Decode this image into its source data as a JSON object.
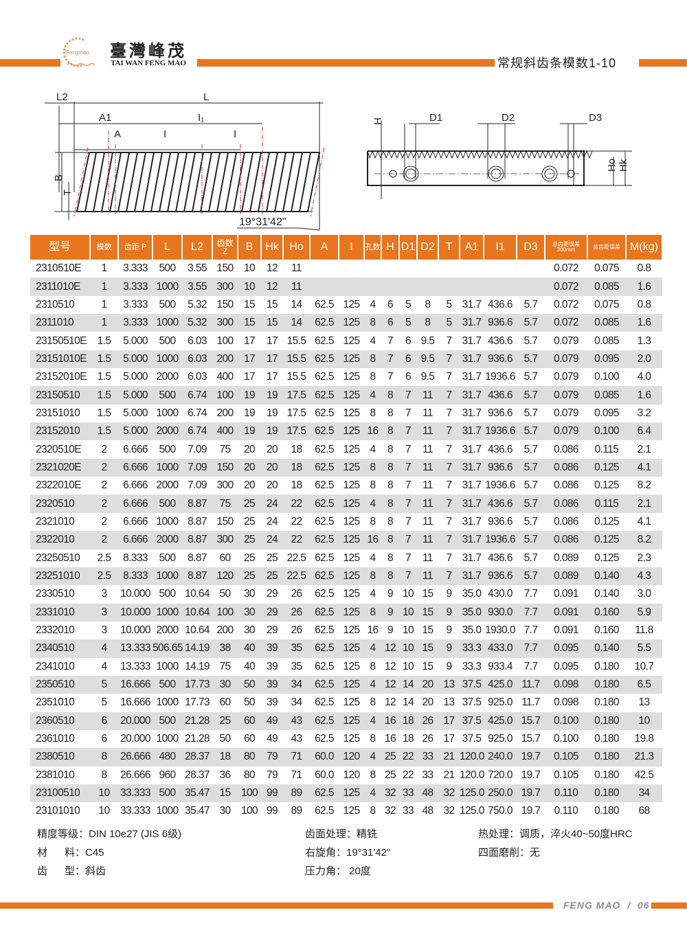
{
  "header": {
    "logo_mark_text": "Fengmao",
    "company_cn": "臺灣峰茂",
    "company_en": "TAI WAN FENG MAO",
    "page_title": "常规斜齿条模数1-10",
    "accent_color": "#e8761e"
  },
  "diagram": {
    "left_labels": {
      "L2": "L2",
      "L": "L",
      "A1": "A1",
      "I1": "I₁",
      "A": "A",
      "I_a": "I",
      "I_b": "I",
      "B": "B",
      "T": "T",
      "angle": "19°31'42\""
    },
    "right_labels": {
      "H": "H",
      "D1": "D1",
      "D2": "D2",
      "D3": "D3",
      "Ho": "Ho",
      "Hk": "Hk"
    }
  },
  "table": {
    "headers": [
      "型号",
      "模数",
      "齿距 P",
      "L",
      "L2",
      "齿数 Z",
      "B",
      "Hk",
      "Ho",
      "A",
      "I",
      "孔数",
      "H",
      "D1",
      "D2",
      "T",
      "A1",
      "I1",
      "D3",
      "总齿距误差 300mm",
      "总齿距误差",
      "M(kg)"
    ],
    "rows": [
      [
        "2310510E",
        "1",
        "3.333",
        "500",
        "3.55",
        "150",
        "10",
        "12",
        "11",
        "",
        "",
        "",
        "",
        "",
        "",
        "",
        "",
        "",
        "",
        "0.072",
        "0.075",
        "0.8"
      ],
      [
        "2311010E",
        "1",
        "3.333",
        "1000",
        "3.55",
        "300",
        "10",
        "12",
        "11",
        "",
        "",
        "",
        "",
        "",
        "",
        "",
        "",
        "",
        "",
        "0.072",
        "0.085",
        "1.6"
      ],
      [
        "2310510",
        "1",
        "3.333",
        "500",
        "5.32",
        "150",
        "15",
        "15",
        "14",
        "62.5",
        "125",
        "4",
        "6",
        "5",
        "8",
        "5",
        "31.7",
        "436.6",
        "5.7",
        "0.072",
        "0.075",
        "0.8"
      ],
      [
        "2311010",
        "1",
        "3.333",
        "1000",
        "5.32",
        "300",
        "15",
        "15",
        "14",
        "62.5",
        "125",
        "8",
        "6",
        "5",
        "8",
        "5",
        "31.7",
        "936.6",
        "5.7",
        "0.072",
        "0.085",
        "1.6"
      ],
      [
        "23150510E",
        "1.5",
        "5.000",
        "500",
        "6.03",
        "100",
        "17",
        "17",
        "15.5",
        "62.5",
        "125",
        "4",
        "7",
        "6",
        "9.5",
        "7",
        "31.7",
        "436.6",
        "5.7",
        "0.079",
        "0.085",
        "1.3"
      ],
      [
        "23151010E",
        "1.5",
        "5.000",
        "1000",
        "6.03",
        "200",
        "17",
        "17",
        "15.5",
        "62.5",
        "125",
        "8",
        "7",
        "6",
        "9.5",
        "7",
        "31.7",
        "936.6",
        "5.7",
        "0.079",
        "0.095",
        "2.0"
      ],
      [
        "23152010E",
        "1.5",
        "5.000",
        "2000",
        "6.03",
        "400",
        "17",
        "17",
        "15.5",
        "62.5",
        "125",
        "8",
        "7",
        "6",
        "9.5",
        "7",
        "31.7",
        "1936.6",
        "5.7",
        "0.079",
        "0.100",
        "4.0"
      ],
      [
        "23150510",
        "1.5",
        "5.000",
        "500",
        "6.74",
        "100",
        "19",
        "19",
        "17.5",
        "62.5",
        "125",
        "4",
        "8",
        "7",
        "11",
        "7",
        "31.7",
        "436.6",
        "5.7",
        "0.079",
        "0.085",
        "1.6"
      ],
      [
        "23151010",
        "1.5",
        "5.000",
        "1000",
        "6.74",
        "200",
        "19",
        "19",
        "17.5",
        "62.5",
        "125",
        "8",
        "8",
        "7",
        "11",
        "7",
        "31.7",
        "936.6",
        "5.7",
        "0.079",
        "0.095",
        "3.2"
      ],
      [
        "23152010",
        "1.5",
        "5.000",
        "2000",
        "6.74",
        "400",
        "19",
        "19",
        "17.5",
        "62.5",
        "125",
        "16",
        "8",
        "7",
        "11",
        "7",
        "31.7",
        "1936.6",
        "5.7",
        "0.079",
        "0.100",
        "6.4"
      ],
      [
        "2320510E",
        "2",
        "6.666",
        "500",
        "7.09",
        "75",
        "20",
        "20",
        "18",
        "62.5",
        "125",
        "4",
        "8",
        "7",
        "11",
        "7",
        "31.7",
        "436.6",
        "5.7",
        "0.086",
        "0.115",
        "2.1"
      ],
      [
        "2321020E",
        "2",
        "6.666",
        "1000",
        "7.09",
        "150",
        "20",
        "20",
        "18",
        "62.5",
        "125",
        "8",
        "8",
        "7",
        "11",
        "7",
        "31.7",
        "936.6",
        "5.7",
        "0.086",
        "0.125",
        "4.1"
      ],
      [
        "2322010E",
        "2",
        "6.666",
        "2000",
        "7.09",
        "300",
        "20",
        "20",
        "18",
        "62.5",
        "125",
        "8",
        "8",
        "7",
        "11",
        "7",
        "31.7",
        "1936.6",
        "5.7",
        "0.086",
        "0.125",
        "8.2"
      ],
      [
        "2320510",
        "2",
        "6.666",
        "500",
        "8.87",
        "75",
        "25",
        "24",
        "22",
        "62.5",
        "125",
        "4",
        "8",
        "7",
        "11",
        "7",
        "31.7",
        "436.6",
        "5.7",
        "0.086",
        "0.115",
        "2.1"
      ],
      [
        "2321010",
        "2",
        "6.666",
        "1000",
        "8.87",
        "150",
        "25",
        "24",
        "22",
        "62.5",
        "125",
        "8",
        "8",
        "7",
        "11",
        "7",
        "31.7",
        "936.6",
        "5.7",
        "0.086",
        "0.125",
        "4.1"
      ],
      [
        "2322010",
        "2",
        "6.666",
        "2000",
        "8.87",
        "300",
        "25",
        "24",
        "22",
        "62.5",
        "125",
        "16",
        "8",
        "7",
        "11",
        "7",
        "31.7",
        "1936.6",
        "5.7",
        "0.086",
        "0.125",
        "8.2"
      ],
      [
        "23250510",
        "2.5",
        "8.333",
        "500",
        "8.87",
        "60",
        "25",
        "25",
        "22.5",
        "62.5",
        "125",
        "4",
        "8",
        "7",
        "11",
        "7",
        "31.7",
        "436.6",
        "5.7",
        "0.089",
        "0.125",
        "2.3"
      ],
      [
        "23251010",
        "2.5",
        "8.333",
        "1000",
        "8.87",
        "120",
        "25",
        "25",
        "22.5",
        "62.5",
        "125",
        "8",
        "8",
        "7",
        "11",
        "7",
        "31.7",
        "936.6",
        "5.7",
        "0.089",
        "0.140",
        "4.3"
      ],
      [
        "2330510",
        "3",
        "10.000",
        "500",
        "10.64",
        "50",
        "30",
        "29",
        "26",
        "62.5",
        "125",
        "4",
        "9",
        "10",
        "15",
        "9",
        "35.0",
        "430.0",
        "7.7",
        "0.091",
        "0.140",
        "3.0"
      ],
      [
        "2331010",
        "3",
        "10.000",
        "1000",
        "10.64",
        "100",
        "30",
        "29",
        "26",
        "62.5",
        "125",
        "8",
        "9",
        "10",
        "15",
        "9",
        "35.0",
        "930.0",
        "7.7",
        "0.091",
        "0.160",
        "5.9"
      ],
      [
        "2332010",
        "3",
        "10.000",
        "2000",
        "10.64",
        "200",
        "30",
        "29",
        "26",
        "62.5",
        "125",
        "16",
        "9",
        "10",
        "15",
        "9",
        "35.0",
        "1930.0",
        "7.7",
        "0.091",
        "0.160",
        "11.8"
      ],
      [
        "2340510",
        "4",
        "13.333",
        "506.65",
        "14.19",
        "38",
        "40",
        "39",
        "35",
        "62.5",
        "125",
        "4",
        "12",
        "10",
        "15",
        "9",
        "33.3",
        "433.0",
        "7.7",
        "0.095",
        "0.140",
        "5.5"
      ],
      [
        "2341010",
        "4",
        "13.333",
        "1000",
        "14.19",
        "75",
        "40",
        "39",
        "35",
        "62.5",
        "125",
        "8",
        "12",
        "10",
        "15",
        "9",
        "33.3",
        "933.4",
        "7.7",
        "0.095",
        "0.180",
        "10.7"
      ],
      [
        "2350510",
        "5",
        "16.666",
        "500",
        "17.73",
        "30",
        "50",
        "39",
        "34",
        "62.5",
        "125",
        "4",
        "12",
        "14",
        "20",
        "13",
        "37.5",
        "425.0",
        "11.7",
        "0.098",
        "0.180",
        "6.5"
      ],
      [
        "2351010",
        "5",
        "16.666",
        "1000",
        "17.73",
        "60",
        "50",
        "39",
        "34",
        "62.5",
        "125",
        "8",
        "12",
        "14",
        "20",
        "13",
        "37.5",
        "925.0",
        "11.7",
        "0.098",
        "0.180",
        "13"
      ],
      [
        "2360510",
        "6",
        "20.000",
        "500",
        "21.28",
        "25",
        "60",
        "49",
        "43",
        "62.5",
        "125",
        "4",
        "16",
        "18",
        "26",
        "17",
        "37.5",
        "425.0",
        "15.7",
        "0.100",
        "0.180",
        "10"
      ],
      [
        "2361010",
        "6",
        "20.000",
        "1000",
        "21.28",
        "50",
        "60",
        "49",
        "43",
        "62.5",
        "125",
        "8",
        "16",
        "18",
        "26",
        "17",
        "37.5",
        "925.0",
        "15.7",
        "0.100",
        "0.180",
        "19.8"
      ],
      [
        "2380510",
        "8",
        "26.666",
        "480",
        "28.37",
        "18",
        "80",
        "79",
        "71",
        "60.0",
        "120",
        "4",
        "25",
        "22",
        "33",
        "21",
        "120.0",
        "240.0",
        "19.7",
        "0.105",
        "0.180",
        "21.3"
      ],
      [
        "2381010",
        "8",
        "26.666",
        "960",
        "28.37",
        "36",
        "80",
        "79",
        "71",
        "60.0",
        "120",
        "8",
        "25",
        "22",
        "33",
        "21",
        "120.0",
        "720.0",
        "19.7",
        "0.105",
        "0.180",
        "42.5"
      ],
      [
        "23100510",
        "10",
        "33.333",
        "500",
        "35.47",
        "15",
        "100",
        "99",
        "89",
        "62.5",
        "125",
        "4",
        "32",
        "33",
        "48",
        "32",
        "125.0",
        "250.0",
        "19.7",
        "0.110",
        "0.180",
        "34"
      ],
      [
        "23101010",
        "10",
        "33.333",
        "1000",
        "35.47",
        "30",
        "100",
        "99",
        "89",
        "62.5",
        "125",
        "8",
        "32",
        "33",
        "48",
        "32",
        "125.0",
        "750.0",
        "19.7",
        "0.110",
        "0.180",
        "68"
      ]
    ]
  },
  "specs": {
    "precision": "精度等级：DIN 10e27  (JIS 6级)",
    "material": "材      料：C45",
    "tooth_type": "齿      型：斜齿",
    "surface": "齿面处理：精铣",
    "helix": "右旋角：19°31'42\"",
    "pressure": "压力角： 20度",
    "heat": "热处理：调质，淬火40~50度HRC",
    "grinding": "四面磨削：无"
  },
  "footer": {
    "text": "FENG MAO  /  06"
  }
}
